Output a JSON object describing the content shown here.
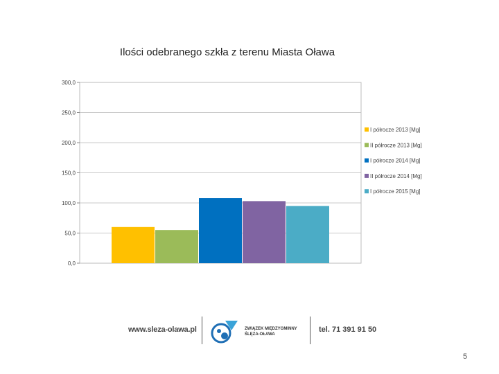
{
  "chart_data": {
    "type": "bar",
    "title": "Ilości odebranego szkła z terenu Miasta Oława",
    "xlabel": "",
    "ylabel": "",
    "ylim": [
      0,
      300
    ],
    "yticks": [
      "300,0",
      "250,0",
      "200,0",
      "150,0",
      "100,0",
      "50,0",
      "0,0"
    ],
    "ytick_values": [
      300,
      250,
      200,
      150,
      100,
      50,
      0
    ],
    "grid": true,
    "legend_position": "right",
    "series": [
      {
        "name": "I półrocze 2013 [Mg]",
        "value": 60,
        "color": "#FFC000"
      },
      {
        "name": "II półrocze 2013 [Mg]",
        "value": 55,
        "color": "#9BBB59"
      },
      {
        "name": "I półrocze 2014 [Mg]",
        "value": 108,
        "color": "#0070C0"
      },
      {
        "name": "II półrocze 2014 [Mg]",
        "value": 103,
        "color": "#8064A2"
      },
      {
        "name": "I półrocze 2015 [Mg]",
        "value": 95,
        "color": "#4BACC6"
      }
    ]
  },
  "footer": {
    "website": "www.sleza-olawa.pl",
    "org_line1": "ZWIĄZEK MIĘDZYGMINNY",
    "org_line2": "ŚLĘZA-OŁAWA",
    "phone": "tel. 71 391 91 50"
  },
  "page_number": "5"
}
